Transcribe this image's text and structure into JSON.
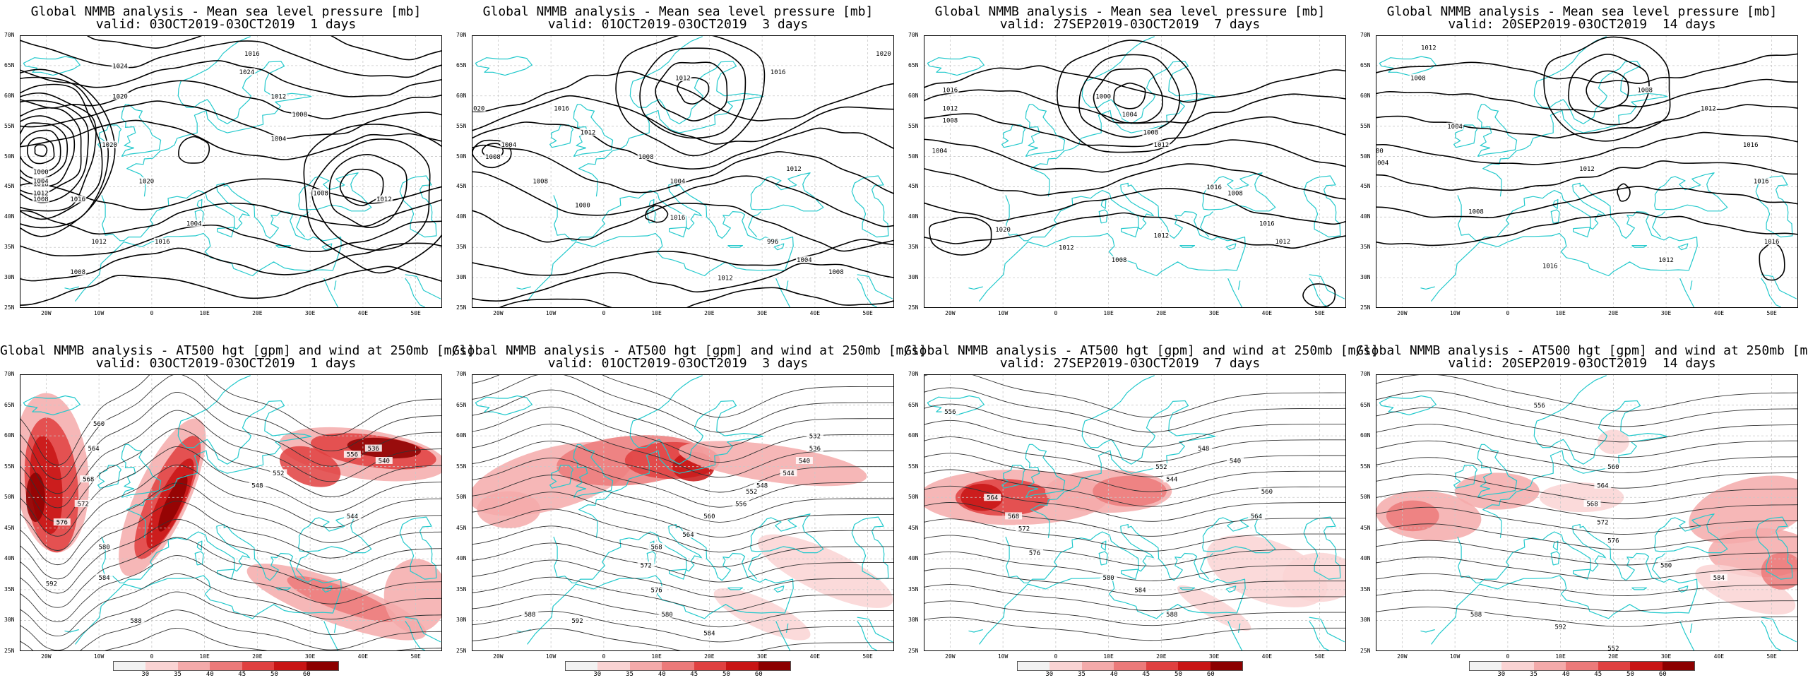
{
  "colors": {
    "coast": "#23c9cc",
    "contour": "#000000",
    "contour_thin": "#333333",
    "grid": "#c8c8c8",
    "wind_scale": [
      "#f2f2f2",
      "#fad3d3",
      "#f4aaaa",
      "#ec7a7a",
      "#e04040",
      "#c81414",
      "#8c0000"
    ]
  },
  "map": {
    "lat_labels": [
      "70N",
      "65N",
      "60N",
      "55N",
      "50N",
      "45N",
      "40N",
      "35N",
      "30N",
      "25N"
    ],
    "lon_labels": [
      "20W",
      "10W",
      "0",
      "10E",
      "20E",
      "30E",
      "40E",
      "50E"
    ]
  },
  "colorbar": {
    "labels": [
      "30",
      "35",
      "40",
      "45",
      "50",
      "60"
    ]
  },
  "panels": [
    {
      "kind": "mslp",
      "period": 1,
      "title1": "Global NMMB analysis - Mean sea level pressure [mb]",
      "title2": "valid: 03OCT2019-03OCT2019  1 days",
      "contour_labels": [
        "1024",
        "1020",
        "1016",
        "1012",
        "1008",
        "1004",
        "1000",
        "1020",
        "1024",
        "1016",
        "1012",
        "1008",
        "1004",
        "1020",
        "1016",
        "1012",
        "1008",
        "1004",
        "1016",
        "1008",
        "1012"
      ]
    },
    {
      "kind": "mslp",
      "period": 3,
      "title1": "Global NMMB analysis - Mean sea level pressure [mb]",
      "title2": "valid: 01OCT2019-03OCT2019  3 days",
      "contour_labels": [
        "1020",
        "1016",
        "1012",
        "1008",
        "1004",
        "996",
        "1000",
        "1004",
        "1008",
        "1012",
        "1016",
        "1020",
        "1008",
        "1016",
        "1012",
        "1004",
        "1008",
        "1012"
      ]
    },
    {
      "kind": "mslp",
      "period": 7,
      "title1": "Global NMMB analysis - Mean sea level pressure [mb]",
      "title2": "valid: 27SEP2019-03OCT2019  7 days",
      "contour_labels": [
        "1016",
        "1012",
        "1008",
        "1004",
        "1000",
        "1004",
        "1008",
        "1012",
        "1016",
        "1020",
        "1012",
        "1008",
        "1012",
        "1016",
        "1012",
        "1008"
      ]
    },
    {
      "kind": "mslp",
      "period": 14,
      "title1": "Global NMMB analysis - Mean sea level pressure [mb]",
      "title2": "valid: 20SEP2019-03OCT2019  14 days",
      "contour_labels": [
        "1012",
        "1008",
        "1004",
        "1000",
        "1004",
        "1008",
        "1012",
        "1016",
        "1016",
        "1012",
        "1008",
        "1016",
        "1012",
        "1016"
      ]
    },
    {
      "kind": "z500",
      "period": 1,
      "title1": "Global NMMB analysis - AT500 hgt [gpm] and wind at 250mb [m/s]",
      "title2": "valid: 03OCT2019-03OCT2019  1 days",
      "contour_labels": [
        "560",
        "564",
        "568",
        "572",
        "576",
        "580",
        "584",
        "588",
        "592",
        "548",
        "552",
        "556",
        "536",
        "540",
        "544"
      ]
    },
    {
      "kind": "z500",
      "period": 3,
      "title1": "Global NMMB analysis - AT500 hgt [gpm] and wind at 250mb [m/s]",
      "title2": "valid: 01OCT2019-03OCT2019  3 days",
      "contour_labels": [
        "532",
        "536",
        "540",
        "544",
        "548",
        "552",
        "556",
        "560",
        "564",
        "568",
        "572",
        "576",
        "580",
        "584",
        "588",
        "592"
      ]
    },
    {
      "kind": "z500",
      "period": 7,
      "title1": "Global NMMB analysis - AT500 hgt [gpm] and wind at 250mb [m/s]",
      "title2": "valid: 27SEP2019-03OCT2019  7 days",
      "contour_labels": [
        "556",
        "548",
        "552",
        "544",
        "540",
        "564",
        "568",
        "572",
        "576",
        "580",
        "584",
        "588",
        "560",
        "564"
      ]
    },
    {
      "kind": "z500",
      "period": 14,
      "title1": "Global NMMB analysis - AT500 hgt [gpm] and wind at 250mb [m/s]",
      "title2": "valid: 20SEP2019-03OCT2019  14 days",
      "contour_labels": [
        "556",
        "560",
        "564",
        "568",
        "572",
        "576",
        "580",
        "584",
        "588",
        "592",
        "552"
      ]
    }
  ]
}
